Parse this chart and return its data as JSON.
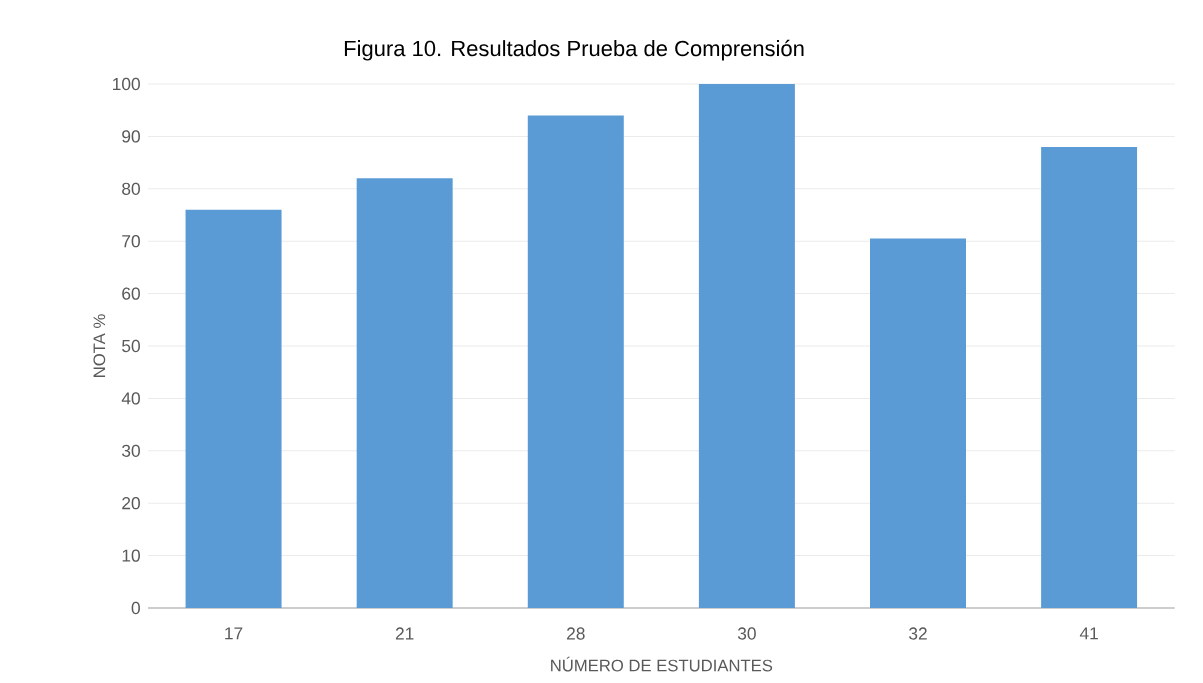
{
  "chart_data": {
    "type": "bar",
    "title": "Figura 10. Resultados Prueba de Comprensión",
    "xlabel": "NÚMERO DE ESTUDIANTES",
    "ylabel": "NOTA %",
    "categories": [
      "17",
      "21",
      "28",
      "30",
      "32",
      "41"
    ],
    "values": [
      76,
      82,
      94,
      100,
      70.5,
      88
    ],
    "color": "#5b9bd5",
    "ylim": [
      0,
      100
    ],
    "yticks": [
      0,
      10,
      20,
      30,
      40,
      50,
      60,
      70,
      80,
      90,
      100
    ],
    "grid": "y"
  }
}
